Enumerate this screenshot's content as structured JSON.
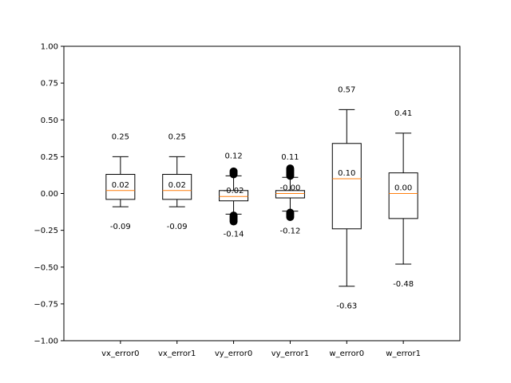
{
  "chart_data": {
    "type": "box",
    "ylim": [
      -1.0,
      1.0
    ],
    "yticks": [
      -1.0,
      -0.75,
      -0.5,
      -0.25,
      0.0,
      0.25,
      0.5,
      0.75,
      1.0
    ],
    "ytick_labels": [
      "−1.00",
      "−0.75",
      "−0.50",
      "−0.25",
      "0.00",
      "0.25",
      "0.50",
      "0.75",
      "1.00"
    ],
    "categories": [
      "vx_error0",
      "vx_error1",
      "vy_error0",
      "vy_error1",
      "w_error0",
      "w_error1"
    ],
    "boxes": [
      {
        "label": "vx_error0",
        "whisker_low": -0.09,
        "q1": -0.04,
        "median": 0.02,
        "q3": 0.13,
        "whisker_high": 0.25,
        "outliers_low": [],
        "outliers_high": [],
        "ann_max": "0.25",
        "ann_median": "0.02",
        "ann_min": "-0.09"
      },
      {
        "label": "vx_error1",
        "whisker_low": -0.09,
        "q1": -0.04,
        "median": 0.02,
        "q3": 0.13,
        "whisker_high": 0.25,
        "outliers_low": [],
        "outliers_high": [],
        "ann_max": "0.25",
        "ann_median": "0.02",
        "ann_min": "-0.09"
      },
      {
        "label": "vy_error0",
        "whisker_low": -0.14,
        "q1": -0.05,
        "median": -0.02,
        "q3": 0.02,
        "whisker_high": 0.12,
        "outliers_low": [
          -0.15,
          -0.16,
          -0.17,
          -0.18,
          -0.19
        ],
        "outliers_high": [
          0.13,
          0.14,
          0.15
        ],
        "ann_max": "0.12",
        "ann_median": "-0.02",
        "ann_min": "-0.14"
      },
      {
        "label": "vy_error1",
        "whisker_low": -0.12,
        "q1": -0.03,
        "median": -0.0,
        "q3": 0.02,
        "whisker_high": 0.11,
        "outliers_low": [
          -0.13,
          -0.14,
          -0.15,
          -0.16
        ],
        "outliers_high": [
          0.12,
          0.13,
          0.14,
          0.15,
          0.16,
          0.17
        ],
        "ann_max": "0.11",
        "ann_median": "-0.00",
        "ann_min": "-0.12"
      },
      {
        "label": "w_error0",
        "whisker_low": -0.63,
        "q1": -0.24,
        "median": 0.1,
        "q3": 0.34,
        "whisker_high": 0.57,
        "outliers_low": [],
        "outliers_high": [],
        "ann_max": "0.57",
        "ann_median": "0.10",
        "ann_min": "-0.63"
      },
      {
        "label": "w_error1",
        "whisker_low": -0.48,
        "q1": -0.17,
        "median": 0.0,
        "q3": 0.14,
        "whisker_high": 0.41,
        "outliers_low": [],
        "outliers_high": [],
        "ann_max": "0.41",
        "ann_median": "0.00",
        "ann_min": "-0.48"
      }
    ],
    "colors": {
      "box": "#000000",
      "median": "#ff7f0e",
      "outlier": "#000000"
    },
    "grid": false,
    "legend": "none"
  }
}
